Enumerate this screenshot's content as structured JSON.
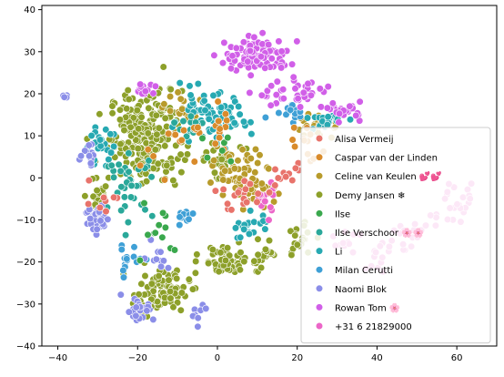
{
  "chart_data": {
    "type": "scatter",
    "title": "",
    "xlabel": "",
    "ylabel": "",
    "xlim": [
      -44,
      70
    ],
    "ylim": [
      -40,
      41
    ],
    "x_ticks": [
      -40,
      -20,
      0,
      20,
      40,
      60
    ],
    "y_ticks": [
      -40,
      -30,
      -20,
      -10,
      0,
      10,
      20,
      30,
      40
    ],
    "x_tick_labels": [
      "−40",
      "−20",
      "0",
      "20",
      "40",
      "60"
    ],
    "y_tick_labels": [
      "−40",
      "−30",
      "−20",
      "−10",
      "0",
      "10",
      "20",
      "30",
      "40"
    ],
    "grid": false,
    "legend_position": "lower-right",
    "series": [
      {
        "name": "Alisa Vermeij",
        "color": "#e8736b"
      },
      {
        "name": "Caspar van der Linden",
        "color": "#d98b2b"
      },
      {
        "name": "Celine van Keulen 💕💕",
        "color": "#b89b2b"
      },
      {
        "name": "Demy Jansen ❄",
        "color": "#8da02a"
      },
      {
        "name": "Ilse",
        "color": "#3aa84d"
      },
      {
        "name": "Ilse Verschoor 🌸🌸",
        "color": "#2aa89a"
      },
      {
        "name": "Li",
        "color": "#27a9b2"
      },
      {
        "name": "Milan Cerutti",
        "color": "#3fa0d6"
      },
      {
        "name": "Naomi Blok",
        "color": "#8b8ee8"
      },
      {
        "name": "Rowan Tom 🌸",
        "color": "#d15fe8"
      },
      {
        "name": "+31 6 21829000",
        "color": "#ec66c8"
      }
    ],
    "clusters": [
      {
        "series": 3,
        "cx": -18,
        "cy": 10,
        "sx": 9,
        "sy": 11,
        "n": 240
      },
      {
        "series": 3,
        "cx": -14,
        "cy": -27,
        "sx": 7,
        "sy": 5,
        "n": 90
      },
      {
        "series": 3,
        "cx": 2,
        "cy": -20,
        "sx": 6,
        "sy": 4,
        "n": 60
      },
      {
        "series": 3,
        "cx": 0,
        "cy": 5,
        "sx": 5,
        "sy": 4,
        "n": 30
      },
      {
        "series": 3,
        "cx": -30,
        "cy": -5,
        "sx": 3,
        "sy": 6,
        "n": 25
      },
      {
        "series": 3,
        "cx": 20,
        "cy": -15,
        "sx": 4,
        "sy": 5,
        "n": 20
      },
      {
        "series": 3,
        "cx": 12,
        "cy": -18,
        "sx": 4,
        "sy": 3,
        "n": 20
      },
      {
        "series": 2,
        "cx": 5,
        "cy": 2,
        "sx": 6,
        "sy": 5,
        "n": 45
      },
      {
        "series": 2,
        "cx": 10,
        "cy": -3,
        "sx": 6,
        "sy": 3,
        "n": 30
      },
      {
        "series": 2,
        "cx": 25,
        "cy": 12,
        "sx": 6,
        "sy": 3,
        "n": 25
      },
      {
        "series": 2,
        "cx": -8,
        "cy": 16,
        "sx": 5,
        "sy": 4,
        "n": 20
      },
      {
        "series": 6,
        "cx": -2,
        "cy": 14,
        "sx": 10,
        "sy": 6,
        "n": 70
      },
      {
        "series": 6,
        "cx": -30,
        "cy": 8,
        "sx": 4,
        "sy": 4,
        "n": 25
      },
      {
        "series": 6,
        "cx": 8,
        "cy": -12,
        "sx": 5,
        "sy": 4,
        "n": 20
      },
      {
        "series": 6,
        "cx": 28,
        "cy": 14,
        "sx": 5,
        "sy": 2,
        "n": 20
      },
      {
        "series": 5,
        "cx": -22,
        "cy": -2,
        "sx": 6,
        "sy": 7,
        "n": 35
      },
      {
        "series": 5,
        "cx": -6,
        "cy": 12,
        "sx": 4,
        "sy": 3,
        "n": 15
      },
      {
        "series": 7,
        "cx": -22,
        "cy": -20,
        "sx": 4,
        "sy": 4,
        "n": 15
      },
      {
        "series": 7,
        "cx": 18,
        "cy": 17,
        "sx": 5,
        "sy": 3,
        "n": 15
      },
      {
        "series": 7,
        "cx": -8,
        "cy": -10,
        "sx": 3,
        "sy": 3,
        "n": 10
      },
      {
        "series": 8,
        "cx": -30,
        "cy": -10,
        "sx": 3,
        "sy": 4,
        "n": 40
      },
      {
        "series": 8,
        "cx": -32,
        "cy": 6,
        "sx": 2,
        "sy": 3,
        "n": 12
      },
      {
        "series": 8,
        "cx": -20,
        "cy": -31,
        "sx": 4,
        "sy": 3,
        "n": 25
      },
      {
        "series": 8,
        "cx": -15,
        "cy": -19,
        "sx": 3,
        "sy": 3,
        "n": 10
      },
      {
        "series": 8,
        "cx": -38,
        "cy": 19.5,
        "sx": 0.8,
        "sy": 0.4,
        "n": 4
      },
      {
        "series": 8,
        "cx": -5,
        "cy": -32,
        "sx": 2,
        "sy": 2,
        "n": 8
      },
      {
        "series": 9,
        "cx": 10,
        "cy": 29,
        "sx": 8,
        "sy": 4,
        "n": 120
      },
      {
        "series": 9,
        "cx": 20,
        "cy": 20,
        "sx": 10,
        "sy": 3,
        "n": 40
      },
      {
        "series": 9,
        "cx": 32,
        "cy": 16,
        "sx": 4,
        "sy": 2,
        "n": 25
      },
      {
        "series": 9,
        "cx": -18,
        "cy": 21,
        "sx": 3,
        "sy": 2,
        "n": 12
      },
      {
        "series": 10,
        "cx": 52,
        "cy": -12,
        "sx": 5,
        "sy": 3,
        "n": 55
      },
      {
        "series": 10,
        "cx": 12,
        "cy": -5,
        "sx": 3,
        "sy": 4,
        "n": 15
      },
      {
        "series": 10,
        "cx": 32,
        "cy": -15,
        "sx": 3,
        "sy": 3,
        "n": 12
      },
      {
        "series": 0,
        "cx": 8,
        "cy": -4,
        "sx": 6,
        "sy": 4,
        "n": 20
      },
      {
        "series": 0,
        "cx": 18,
        "cy": 1,
        "sx": 4,
        "sy": 3,
        "n": 12
      },
      {
        "series": 0,
        "cx": -28,
        "cy": -5,
        "sx": 4,
        "sy": 5,
        "n": 8
      },
      {
        "series": 1,
        "cx": 0,
        "cy": 12,
        "sx": 6,
        "sy": 6,
        "n": 15
      },
      {
        "series": 1,
        "cx": 22,
        "cy": 8,
        "sx": 6,
        "sy": 6,
        "n": 12
      },
      {
        "series": 1,
        "cx": -12,
        "cy": 6,
        "sx": 8,
        "sy": 8,
        "n": 10
      },
      {
        "series": 4,
        "cx": -15,
        "cy": -10,
        "sx": 8,
        "sy": 12,
        "n": 12
      },
      {
        "series": 4,
        "cx": 0,
        "cy": 5,
        "sx": 6,
        "sy": 6,
        "n": 6
      }
    ]
  }
}
